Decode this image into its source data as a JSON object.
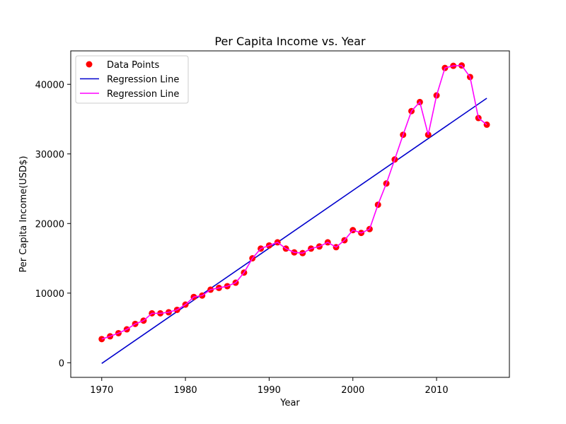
{
  "chart_data": {
    "type": "line",
    "title": "Per Capita Income vs. Year",
    "xlabel": "Year",
    "ylabel": "Per Capita Income(USD$)",
    "xlim": [
      1966.3,
      2018.7
    ],
    "ylim": [
      -2100,
      44800
    ],
    "xticks": [
      1970,
      1980,
      1990,
      2000,
      2010
    ],
    "yticks": [
      0,
      10000,
      20000,
      30000,
      40000
    ],
    "grid": false,
    "legend_position": "upper-left",
    "legend": [
      {
        "label": "Data Points",
        "kind": "marker",
        "color": "#ff0000"
      },
      {
        "label": "Regression Line",
        "kind": "line",
        "color": "#0000cd"
      },
      {
        "label": "Regression Line",
        "kind": "line",
        "color": "#ff00ff"
      }
    ],
    "series": [
      {
        "name": "Data Points",
        "type": "scatter",
        "color": "#ff0000",
        "x": [
          1970,
          1971,
          1972,
          1973,
          1974,
          1975,
          1976,
          1977,
          1978,
          1979,
          1980,
          1981,
          1982,
          1983,
          1984,
          1985,
          1986,
          1987,
          1988,
          1989,
          1990,
          1991,
          1992,
          1993,
          1994,
          1995,
          1996,
          1997,
          1998,
          1999,
          2000,
          2001,
          2002,
          2003,
          2004,
          2005,
          2006,
          2007,
          2008,
          2009,
          2010,
          2011,
          2012,
          2013,
          2014,
          2015,
          2016
        ],
        "y": [
          3400,
          3800,
          4250,
          4800,
          5580,
          6050,
          7100,
          7100,
          7250,
          7600,
          8350,
          9450,
          9650,
          10500,
          10750,
          11000,
          11500,
          12950,
          15000,
          16400,
          16850,
          17300,
          16400,
          15850,
          15750,
          16400,
          16700,
          17300,
          16600,
          17600,
          19050,
          18650,
          19200,
          22700,
          25750,
          29200,
          32750,
          36150,
          37450,
          32750,
          38400,
          42350,
          42650,
          42700,
          41050,
          35150,
          34200
        ]
      },
      {
        "name": "Regression Line",
        "type": "line",
        "color": "#0000cd",
        "x": [
          1970,
          2016
        ],
        "y": [
          -100,
          38000
        ]
      },
      {
        "name": "Regression Line",
        "type": "line",
        "color": "#ff00ff",
        "x": [
          1970,
          1971,
          1972,
          1973,
          1974,
          1975,
          1976,
          1977,
          1978,
          1979,
          1980,
          1981,
          1982,
          1983,
          1984,
          1985,
          1986,
          1987,
          1988,
          1989,
          1990,
          1991,
          1992,
          1993,
          1994,
          1995,
          1996,
          1997,
          1998,
          1999,
          2000,
          2001,
          2002,
          2003,
          2004,
          2005,
          2006,
          2007,
          2008,
          2009,
          2010,
          2011,
          2012,
          2013,
          2014,
          2015,
          2016
        ],
        "y": [
          3400,
          3800,
          4250,
          4800,
          5580,
          6050,
          7100,
          7100,
          7250,
          7600,
          8350,
          9450,
          9650,
          10500,
          10750,
          11000,
          11500,
          12950,
          15000,
          16400,
          16850,
          17300,
          16400,
          15850,
          15750,
          16400,
          16700,
          17300,
          16600,
          17600,
          19050,
          18650,
          19200,
          22700,
          25750,
          29200,
          32750,
          36150,
          37450,
          32750,
          38400,
          42350,
          42650,
          42700,
          41050,
          35150,
          34200
        ]
      }
    ]
  }
}
